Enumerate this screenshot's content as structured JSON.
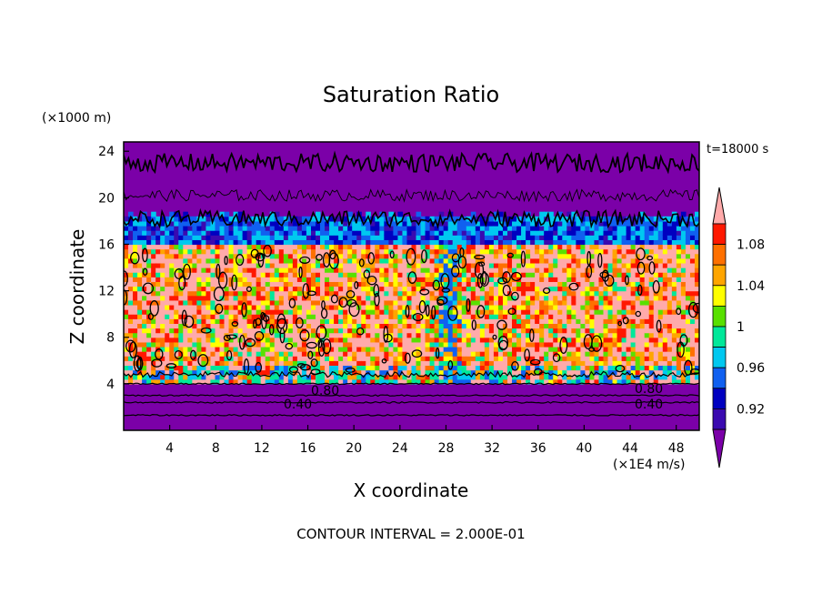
{
  "chart_data": {
    "type": "heatmap",
    "title": "Saturation Ratio",
    "xlabel": "X coordinate",
    "ylabel": "Z coordinate",
    "x_unit": "(×1E4 m/s)",
    "y_unit": "(×1000 m)",
    "time_label": "t=18000 s",
    "footer": "CONTOUR INTERVAL = 2.000E-01",
    "xlim": [
      0,
      50
    ],
    "ylim": [
      0,
      24.8
    ],
    "x_ticks": [
      "4",
      "8",
      "12",
      "16",
      "20",
      "24",
      "28",
      "32",
      "36",
      "40",
      "44",
      "48"
    ],
    "y_ticks": [
      "4",
      "8",
      "12",
      "16",
      "20",
      "24"
    ],
    "contour_labels": [
      "0.80",
      "0.40",
      "0.80",
      "0.40"
    ],
    "colorbar": {
      "tick_labels": [
        "1.08",
        "1.04",
        "1",
        "0.96",
        "0.92"
      ],
      "levels": [
        0.9,
        0.92,
        0.94,
        0.96,
        0.98,
        1.0,
        1.02,
        1.04,
        1.06,
        1.08,
        1.1
      ],
      "colors": [
        "#7b00a8",
        "#3a0ab0",
        "#0000c0",
        "#1060f0",
        "#00c8f0",
        "#00e89a",
        "#58e000",
        "#ffff00",
        "#ffa500",
        "#ff7000",
        "#ff1800",
        "#ffaaaa"
      ]
    },
    "bands": [
      {
        "z_range": [
          0,
          4
        ],
        "value": "< 0.90"
      },
      {
        "z_range": [
          4,
          16
        ],
        "value": "1.00 - 1.10"
      },
      {
        "z_range": [
          16,
          18
        ],
        "value": "0.92 - 0.98"
      },
      {
        "z_range": [
          18,
          24.8
        ],
        "value": "< 0.90"
      }
    ]
  }
}
